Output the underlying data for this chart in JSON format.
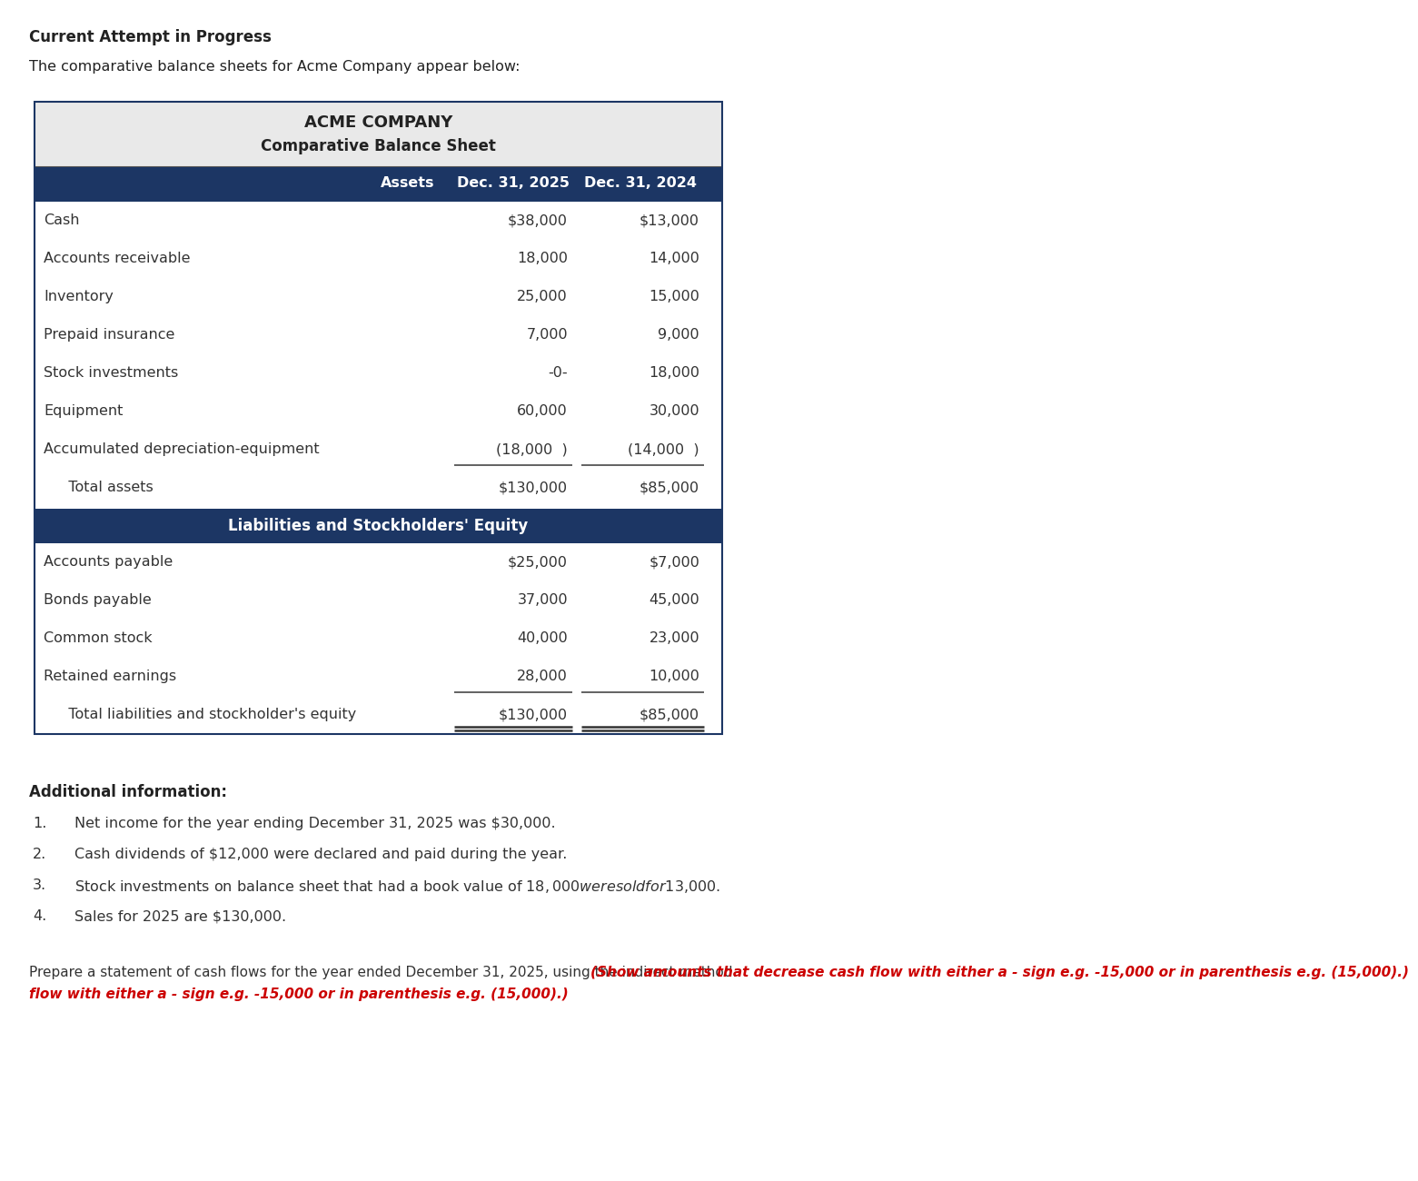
{
  "page_title": "Current Attempt in Progress",
  "intro_text": "The comparative balance sheets for Acme Company appear below:",
  "company_name": "ACME COMPANY",
  "sheet_title": "Comparative Balance Sheet",
  "col_header_assets": "Assets",
  "col_header_2025": "Dec. 31, 2025",
  "col_header_2024": "Dec. 31, 2024",
  "assets_rows": [
    [
      "Cash",
      "$38,000",
      "$13,000"
    ],
    [
      "Accounts receivable",
      "18,000",
      "14,000"
    ],
    [
      "Inventory",
      "25,000",
      "15,000"
    ],
    [
      "Prepaid insurance",
      "7,000",
      "9,000"
    ],
    [
      "Stock investments",
      "-0-",
      "18,000"
    ],
    [
      "Equipment",
      "60,000",
      "30,000"
    ],
    [
      "Accumulated depreciation-equipment",
      "(18,000  )",
      "(14,000  )"
    ]
  ],
  "total_assets_label": "   Total assets",
  "total_assets_2025": "$130,000",
  "total_assets_2024": "$85,000",
  "liabilities_header": "Liabilities and Stockholders' Equity",
  "liabilities_rows": [
    [
      "Accounts payable",
      "$25,000",
      "$7,000"
    ],
    [
      "Bonds payable",
      "37,000",
      "45,000"
    ],
    [
      "Common stock",
      "40,000",
      "23,000"
    ],
    [
      "Retained earnings",
      "28,000",
      "10,000"
    ]
  ],
  "total_liab_label": "   Total liabilities and stockholder's equity",
  "total_liab_2025": "$130,000",
  "total_liab_2024": "$85,000",
  "additional_info_title": "Additional information:",
  "additional_items": [
    "Net income for the year ending December 31, 2025 was $30,000.",
    "Cash dividends of $12,000 were declared and paid during the year.",
    "Stock investments on balance sheet that had a book value of $18,000 were sold for $13,000.",
    "Sales for 2025 are $130,000."
  ],
  "footer_normal": "Prepare a statement of cash flows for the year ended December 31, 2025, using the indirect method. ",
  "footer_red_bold": "(Show amounts that decrease cash flow with either a - sign e.g. -15,000 or in parenthesis e.g. (15,000).)",
  "dark_blue": "#1c3664",
  "white": "#ffffff",
  "light_gray": "#e9e9e9",
  "body_color": "#333333",
  "red_color": "#cc0000",
  "page_bg": "#ffffff",
  "border_color": "#1c3664"
}
